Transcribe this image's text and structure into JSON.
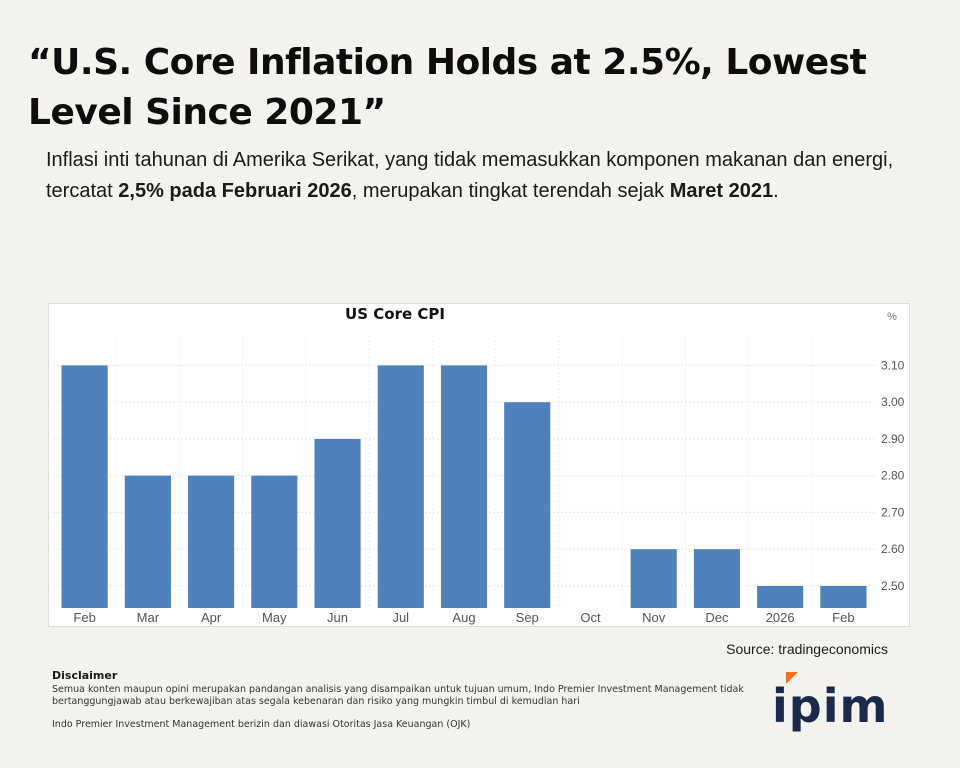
{
  "header": {
    "headline": "“U.S. Core Inflation Holds at 2.5%, Lowest Level Since 2021”",
    "subtitle_parts": [
      {
        "text": "Inflasi inti tahunan di Amerika Serikat, yang tidak memasukkan komponen makanan dan energi, tercatat ",
        "bold": false
      },
      {
        "text": "2,5% pada Februari 2026",
        "bold": true
      },
      {
        "text": ", merupakan tingkat terendah sejak ",
        "bold": false
      },
      {
        "text": "Maret 2021",
        "bold": true
      },
      {
        "text": ".",
        "bold": false
      }
    ]
  },
  "chart_data": {
    "type": "bar",
    "title": "US Core CPI",
    "unit_label": "%",
    "categories": [
      "Feb",
      "Mar",
      "Apr",
      "May",
      "Jun",
      "Jul",
      "Aug",
      "Sep",
      "Oct",
      "Nov",
      "Dec",
      "2026",
      "Feb"
    ],
    "values": [
      3.1,
      2.8,
      2.8,
      2.8,
      2.9,
      3.1,
      3.1,
      3.0,
      null,
      2.6,
      2.6,
      2.5,
      2.5
    ],
    "yticks": [
      "3.10",
      "3.00",
      "2.90",
      "2.80",
      "2.70",
      "2.60",
      "2.50"
    ],
    "ylim": [
      2.44,
      3.18
    ],
    "grid": true,
    "bar_color": "#4f81bd",
    "xlabel": "",
    "ylabel": ""
  },
  "source": "Source: tradingeconomics",
  "disclaimer": {
    "title": "Disclaimer",
    "line1": "Semua konten maupun opini merupakan pandangan analisis yang disampaikan untuk tujuan umum, Indo Premier Investment Management tidak bertanggungjawab atau berkewajiban atas segala kebenaran dan risiko yang mungkin timbul di kemudian hari",
    "line2": "Indo Premier Investment Management berizin dan diawasi Otoritas Jasa Keuangan (OJK)"
  },
  "logo": {
    "text": "ipim",
    "accent_color": "#f36f21",
    "text_color": "#1b2a4a"
  }
}
